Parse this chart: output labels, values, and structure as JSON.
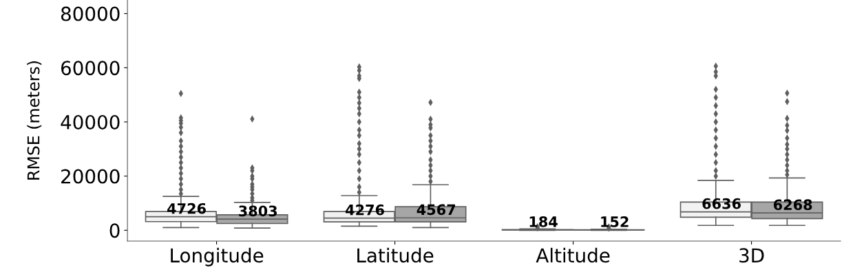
{
  "chart_data": {
    "type": "box",
    "ylabel": "RMSE (meters)",
    "categories": [
      "Longitude",
      "Latitude",
      "Altitude",
      "3D"
    ],
    "ylim": [
      -4000,
      85000
    ],
    "yticks": [
      0,
      20000,
      40000,
      60000,
      80000
    ],
    "grid": false,
    "legend": false,
    "marker": "diamond",
    "series": [
      {
        "color": "#f2f2f2",
        "value_labels": [
          "4726",
          "4276",
          "184",
          "6636"
        ],
        "boxes": [
          {
            "low": 1000,
            "q1": 3200,
            "median": 5000,
            "q3": 6900,
            "high": 12500,
            "outliers": [
              13500,
              15000,
              17000,
              19000,
              21000,
              23000,
              25000,
              27000,
              29000,
              31000,
              33000,
              36000,
              38000,
              39500,
              40500,
              41500,
              50500
            ]
          },
          {
            "low": 1500,
            "q1": 3100,
            "median": 4500,
            "q3": 6900,
            "high": 12800,
            "outliers": [
              14000,
              16000,
              19000,
              22000,
              25000,
              28000,
              30000,
              32000,
              35000,
              37000,
              40000,
              43000,
              45000,
              47000,
              49000,
              51000,
              56000,
              57000,
              59000,
              60300
            ]
          },
          {
            "low": 0,
            "q1": 100,
            "median": 150,
            "q3": 250,
            "high": 500,
            "outliers": [
              900,
              1300
            ]
          },
          {
            "low": 1800,
            "q1": 4800,
            "median": 6800,
            "q3": 10400,
            "high": 18400,
            "outliers": [
              20000,
              22000,
              25000,
              28000,
              31000,
              34000,
              37000,
              40000,
              43000,
              46000,
              49000,
              52000,
              57000,
              58500,
              60600
            ]
          }
        ]
      },
      {
        "color": "#a6a6a6",
        "value_labels": [
          "3803",
          "4567",
          "152",
          "6268"
        ],
        "boxes": [
          {
            "low": 800,
            "q1": 2500,
            "median": 4100,
            "q3": 5700,
            "high": 10300,
            "outliers": [
              11000,
              12000,
              13500,
              15000,
              16000,
              17000,
              19000,
              20000,
              22000,
              23000,
              41100
            ]
          },
          {
            "low": 1000,
            "q1": 3100,
            "median": 4600,
            "q3": 8700,
            "high": 16800,
            "outliers": [
              18000,
              20000,
              22000,
              24000,
              26000,
              29000,
              31000,
              33000,
              35000,
              37800,
              39000,
              41000,
              47200
            ]
          },
          {
            "low": 0,
            "q1": 80,
            "median": 120,
            "q3": 200,
            "high": 400,
            "outliers": [
              800,
              1200
            ]
          },
          {
            "low": 1800,
            "q1": 4300,
            "median": 6400,
            "q3": 10400,
            "high": 19300,
            "outliers": [
              20500,
              22000,
              24000,
              26000,
              28000,
              30000,
              31700,
              34000,
              36800,
              38700,
              41300,
              47500,
              50600
            ]
          }
        ]
      }
    ]
  }
}
